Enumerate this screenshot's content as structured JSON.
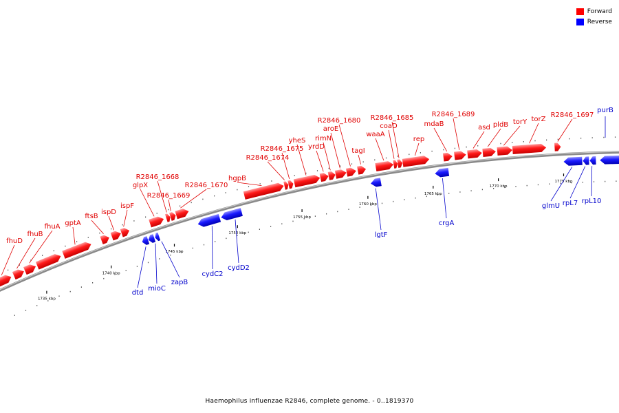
{
  "colors": {
    "forward": "#ff0000",
    "reverse": "#0000ff",
    "backbone": "#8a8a8a"
  },
  "legend": [
    {
      "label": "Forward",
      "color": "#ff0000"
    },
    {
      "label": "Reverse",
      "color": "#0000ff"
    }
  ],
  "caption": "Haemophilus influenzae R2846, complete genome. - 0..1819370",
  "scale": {
    "unit": "kbp",
    "labels": [
      "1735 kbp",
      "1740 kbp",
      "1745 kbp",
      "1750 kbp",
      "1755 kbp",
      "1760 kbp",
      "1765 kbp",
      "1770 kbp",
      "1775 kbp"
    ]
  },
  "forward_genes": [
    {
      "name": "fhuD"
    },
    {
      "name": "fhuB"
    },
    {
      "name": "fhuA"
    },
    {
      "name": "gptA"
    },
    {
      "name": "ftsB"
    },
    {
      "name": "ispD"
    },
    {
      "name": "ispF"
    },
    {
      "name": "glpX"
    },
    {
      "name": "R2846_1668"
    },
    {
      "name": "R2846_1669"
    },
    {
      "name": "R2846_1670"
    },
    {
      "name": "hgpB"
    },
    {
      "name": "R2846_1674"
    },
    {
      "name": "R2846_1675"
    },
    {
      "name": "yheS"
    },
    {
      "name": "yrdD"
    },
    {
      "name": "rimN"
    },
    {
      "name": "aroE"
    },
    {
      "name": "R2846_1680"
    },
    {
      "name": "tagI"
    },
    {
      "name": "waaA"
    },
    {
      "name": "coaD"
    },
    {
      "name": "R2846_1685"
    },
    {
      "name": "rep"
    },
    {
      "name": "mdaB"
    },
    {
      "name": "R2846_1689"
    },
    {
      "name": "asd"
    },
    {
      "name": "pldB"
    },
    {
      "name": "torY"
    },
    {
      "name": "torZ"
    },
    {
      "name": "R2846_1697"
    }
  ],
  "reverse_genes": [
    {
      "name": "dtd"
    },
    {
      "name": "mioC"
    },
    {
      "name": "zapB"
    },
    {
      "name": "cydC2"
    },
    {
      "name": "cydD2"
    },
    {
      "name": "lgtF"
    },
    {
      "name": "crgA"
    },
    {
      "name": "glmU"
    },
    {
      "name": "rpL7"
    },
    {
      "name": "rpL10"
    },
    {
      "name": "purB"
    }
  ]
}
